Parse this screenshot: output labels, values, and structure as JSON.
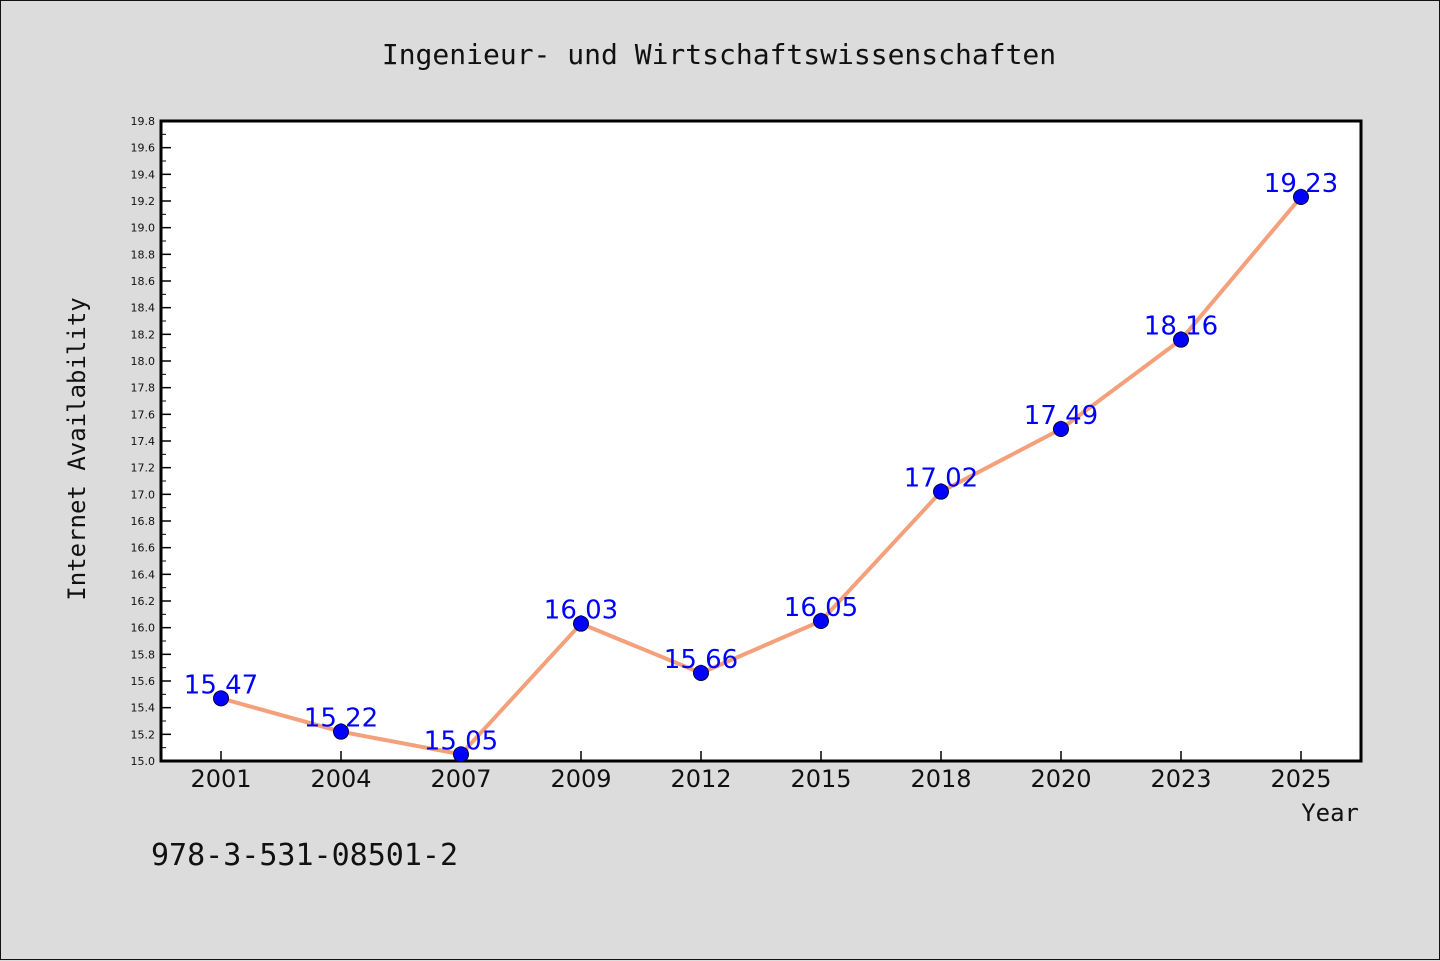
{
  "chart_data": {
    "type": "line",
    "title": "Ingenieur- und Wirtschaftswissenschaften",
    "xlabel": "Year",
    "ylabel": "Internet Availability",
    "categories": [
      "2001",
      "2004",
      "2007",
      "2009",
      "2012",
      "2015",
      "2018",
      "2020",
      "2023",
      "2025"
    ],
    "series": [
      {
        "values": [
          15.47,
          15.22,
          15.05,
          16.03,
          15.66,
          16.05,
          17.02,
          17.49,
          18.16,
          19.23
        ],
        "line_color": "#f4a07a",
        "marker_color": "#0000ff"
      }
    ],
    "data_labels": [
      "15.47",
      "15.22",
      "15.05",
      "16.03",
      "15.66",
      "16.05",
      "17.02",
      "17.49",
      "18.16",
      "19.23"
    ],
    "data_label_color": "#0000ff",
    "ylim": [
      15.0,
      19.8
    ],
    "y_ticks": [
      "15.0",
      "15.2",
      "15.4",
      "15.6",
      "15.8",
      "16.0",
      "16.2",
      "16.4",
      "16.6",
      "16.8",
      "17.0",
      "17.2",
      "17.4",
      "17.6",
      "17.8",
      "18.0",
      "18.2",
      "18.4",
      "18.6",
      "18.8",
      "19.0",
      "19.2",
      "19.4",
      "19.6",
      "19.8"
    ],
    "grid": false,
    "legend": "none"
  },
  "footer": {
    "isbn": "978-3-531-08501-2"
  }
}
